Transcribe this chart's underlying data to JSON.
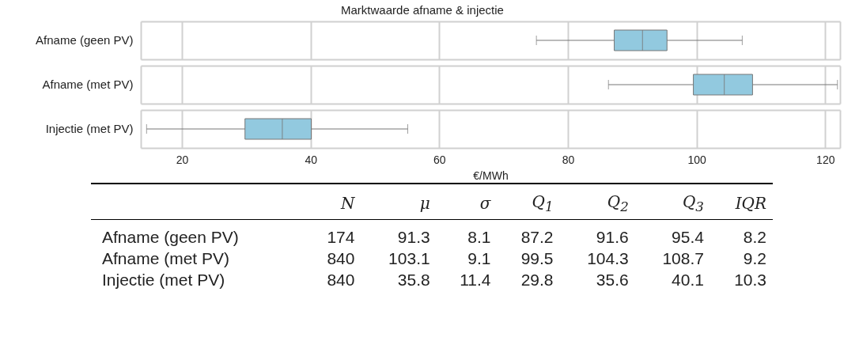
{
  "chart_data": [
    {
      "type": "box",
      "title": "Marktwaarde afname & injectie",
      "xlabel": "€/MWh",
      "orientation": "horizontal",
      "categories": [
        "Afname (geen PV)",
        "Afname (met PV)",
        "Injectie (met PV)"
      ],
      "color": "#92c9df",
      "boxes": [
        {
          "low": 75.1,
          "q1": 87.2,
          "median": 91.6,
          "q3": 95.4,
          "high": 107.1
        },
        {
          "low": 86.3,
          "q1": 99.5,
          "median": 104.3,
          "q3": 108.7,
          "high": 121.9
        },
        {
          "low": 14.5,
          "q1": 29.8,
          "median": 35.6,
          "q3": 40.1,
          "high": 55.1
        }
      ],
      "xlim": [
        13.6,
        122.3
      ],
      "xticks": [
        20,
        40,
        60,
        80,
        100,
        120
      ],
      "grid": "x"
    },
    {
      "type": "heatmap",
      "categories": [
        "N",
        "μ",
        "σ",
        "Q$_{1}$",
        "Q$_{2}$",
        "Q$_{3}$",
        "IQR"
      ],
      "y_categories": [
        "Afname (geen PV)",
        "Afname (met PV)",
        "Injectie (met PV)"
      ],
      "data_labels": true,
      "cells": [
        [
          174,
          91.3,
          8.1,
          87.2,
          91.6,
          95.4,
          8.2
        ],
        [
          840,
          103.1,
          9.1,
          99.5,
          104.3,
          108.7,
          9.2
        ],
        [
          840,
          35.8,
          11.4,
          29.8,
          35.6,
          40.1,
          10.3
        ]
      ]
    }
  ]
}
